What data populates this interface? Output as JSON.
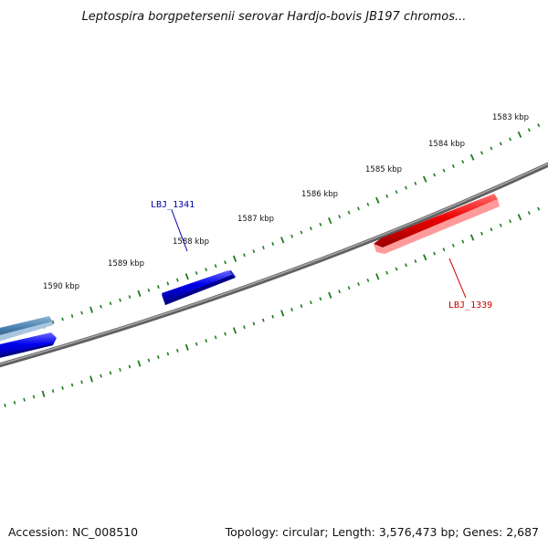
{
  "title": "Leptospira borgpetersenii serovar Hardjo-bovis JB197 chromos...",
  "footer": {
    "accession": "Accession: NC_008510",
    "summary": "Topology: circular; Length: 3,576,473 bp; Genes: 2,687"
  },
  "scale_labels": [
    {
      "value": 1583,
      "text": "1583 kbp"
    },
    {
      "value": 1584,
      "text": "1584 kbp"
    },
    {
      "value": 1585,
      "text": "1585 kbp"
    },
    {
      "value": 1586,
      "text": "1586 kbp"
    },
    {
      "value": 1587,
      "text": "1587 kbp"
    },
    {
      "value": 1588,
      "text": "1588 kbp"
    },
    {
      "value": 1589,
      "text": "1589 kbp"
    },
    {
      "value": 1590,
      "text": "1590 kbp"
    }
  ],
  "genes": [
    {
      "label": "LBJ_1341",
      "strand": "forward",
      "color": "#0000ee"
    },
    {
      "label": "LBJ_1339",
      "strand": "reverse",
      "color": "#ee0000"
    }
  ],
  "colors": {
    "backbone": "#808080",
    "ticks": "#1f7a1f",
    "forward_gene": "#0000ee",
    "reverse_gene": "#ee0000",
    "steel_gene": "#4a7fae",
    "forward_label": "#0000aa",
    "reverse_label": "#cc0000"
  }
}
